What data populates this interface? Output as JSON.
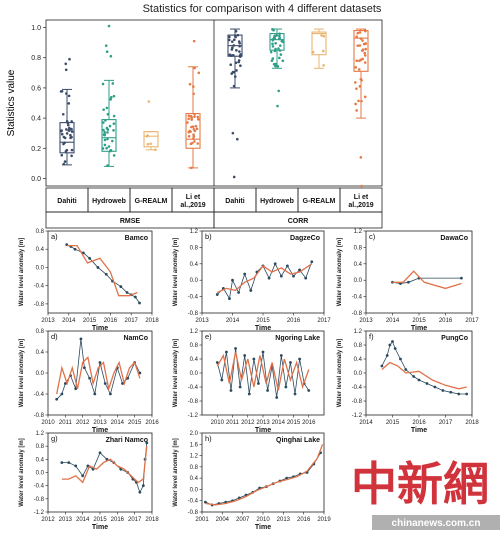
{
  "title": "Statistics for comparison with 4 different datasets",
  "colors": {
    "Dahiti": "#3b4c68",
    "Hydroweb": "#2f9e88",
    "G-REALM": "#e9b56f",
    "Li et al.,2019": "#e47a46",
    "measured": "#2b4a5e",
    "altimetry": "#e0724a"
  },
  "chart_data": [
    {
      "type": "box",
      "ylabel": "Statistics value",
      "ylim": [
        -0.05,
        1.05
      ],
      "yticks": [
        "0.0",
        "0.2",
        "0.4",
        "0.6",
        "0.8",
        "1.0"
      ],
      "groups": [
        "RMSE",
        "CORR"
      ],
      "categories": [
        "Dahiti",
        "Hydroweb",
        "G-REALM",
        "Li et al.,2019",
        "Dahiti",
        "Hydroweb",
        "G-REALM",
        "Li et al.,2019"
      ],
      "category_labels": [
        "Dahiti",
        "Hydroweb",
        "G-REALM",
        "Li et\nal.,2019",
        "Dahiti",
        "Hydroweb",
        "G-REALM",
        "Li et\nal.,2019"
      ],
      "boxes": [
        {
          "group": "RMSE",
          "dataset": "Dahiti",
          "min": 0.09,
          "q1": 0.17,
          "median": 0.24,
          "q3": 0.37,
          "max": 0.59,
          "outliers": [
            0.72,
            0.76,
            0.79
          ]
        },
        {
          "group": "RMSE",
          "dataset": "Hydroweb",
          "min": 0.08,
          "q1": 0.18,
          "median": 0.27,
          "q3": 0.39,
          "max": 0.65,
          "outliers": [
            0.81,
            0.84,
            0.88,
            1.01
          ]
        },
        {
          "group": "RMSE",
          "dataset": "G-REALM",
          "min": 0.19,
          "q1": 0.21,
          "median": 0.28,
          "q3": 0.31,
          "max": 0.31,
          "outliers": [
            0.51
          ]
        },
        {
          "group": "RMSE",
          "dataset": "Li et al.,2019",
          "min": 0.07,
          "q1": 0.2,
          "median": 0.26,
          "q3": 0.43,
          "max": 0.74,
          "outliers": [
            0.91
          ]
        },
        {
          "group": "CORR",
          "dataset": "Dahiti",
          "min": 0.6,
          "q1": 0.81,
          "median": 0.88,
          "q3": 0.95,
          "max": 0.99,
          "outliers": [
            0.3,
            0.26,
            0.01
          ]
        },
        {
          "group": "CORR",
          "dataset": "Hydroweb",
          "min": 0.73,
          "q1": 0.85,
          "median": 0.92,
          "q3": 0.96,
          "max": 0.99,
          "outliers": [
            0.48,
            0.58
          ]
        },
        {
          "group": "CORR",
          "dataset": "G-REALM",
          "min": 0.73,
          "q1": 0.82,
          "median": 0.96,
          "q3": 0.97,
          "max": 0.99,
          "outliers": []
        },
        {
          "group": "CORR",
          "dataset": "Li et al.,2019",
          "min": 0.4,
          "q1": 0.71,
          "median": 0.93,
          "q3": 0.98,
          "max": 0.99,
          "outliers": [
            0.14,
            -0.05
          ]
        }
      ]
    },
    {
      "type": "line",
      "panel": "a)",
      "name": "Bamco",
      "ylabel": "Water level anomaly [m]",
      "xlabel": "Time",
      "xlim": [
        2013,
        2018
      ],
      "ylim": [
        -1.0,
        0.8
      ],
      "xticks": [
        2013,
        2014,
        2015,
        2016,
        2017,
        2018
      ],
      "yticks": [
        "-0.8",
        "-0.4",
        "0.0",
        "0.4",
        "0.8"
      ],
      "series": [
        {
          "color_key": "measured",
          "x": [
            2013.9,
            2014.1,
            2014.3,
            2014.7,
            2015.0,
            2015.4,
            2015.8,
            2016.1,
            2016.5,
            2016.8,
            2017.0,
            2017.2,
            2017.4
          ],
          "y": [
            0.5,
            0.46,
            0.4,
            0.32,
            0.2,
            0.0,
            -0.15,
            -0.3,
            -0.42,
            -0.55,
            -0.6,
            -0.65,
            -0.78
          ]
        },
        {
          "color_key": "altimetry",
          "x": [
            2013.9,
            2014.4,
            2014.9,
            2015.5,
            2016.0,
            2016.4,
            2016.9,
            2017.3
          ],
          "y": [
            0.48,
            0.48,
            0.1,
            0.2,
            -0.1,
            -0.62,
            -0.62,
            -0.55
          ]
        }
      ]
    },
    {
      "type": "line",
      "panel": "b)",
      "name": "DagzeCo",
      "ylabel": "Water level anomaly [m]",
      "xlabel": "Time",
      "xlim": [
        2013,
        2017
      ],
      "ylim": [
        -0.8,
        1.2
      ],
      "xticks": [
        2013,
        2014,
        2015,
        2016,
        2017
      ],
      "yticks": [
        "-0.8",
        "-0.4",
        "0.0",
        "0.4",
        "0.8",
        "1.2"
      ],
      "series": [
        {
          "color_key": "measured",
          "x": [
            2013.5,
            2013.7,
            2013.9,
            2014.0,
            2014.2,
            2014.4,
            2014.6,
            2014.8,
            2015.0,
            2015.2,
            2015.4,
            2015.6,
            2015.8,
            2016.0,
            2016.2,
            2016.4,
            2016.6
          ],
          "y": [
            -0.35,
            -0.2,
            -0.45,
            0.0,
            -0.3,
            0.15,
            -0.25,
            0.2,
            0.35,
            0.05,
            0.4,
            0.1,
            0.35,
            0.1,
            0.25,
            0.05,
            0.45
          ]
        },
        {
          "color_key": "altimetry",
          "x": [
            2013.5,
            2013.8,
            2014.1,
            2014.4,
            2014.7,
            2015.0,
            2015.3,
            2015.6,
            2015.9,
            2016.2,
            2016.6
          ],
          "y": [
            -0.3,
            -0.2,
            -0.25,
            -0.05,
            0.05,
            0.35,
            0.2,
            0.3,
            0.15,
            0.2,
            0.4
          ]
        }
      ]
    },
    {
      "type": "line",
      "panel": "c)",
      "name": "DawaCo",
      "ylabel": "Water level anomaly [m]",
      "xlabel": "Time",
      "xlim": [
        2013,
        2017
      ],
      "ylim": [
        -0.8,
        1.2
      ],
      "xticks": [
        2013,
        2014,
        2015,
        2016,
        2017
      ],
      "yticks": [
        "-0.8",
        "-0.4",
        "0.0",
        "0.4",
        "0.8",
        "1.2"
      ],
      "series": [
        {
          "color_key": "measured",
          "x": [
            2014.0,
            2014.3,
            2014.6,
            2015.0,
            2016.6
          ],
          "y": [
            -0.05,
            -0.08,
            -0.05,
            0.05,
            0.05
          ]
        },
        {
          "color_key": "altimetry",
          "x": [
            2014.0,
            2014.4,
            2014.8,
            2015.2,
            2016.0,
            2016.6
          ],
          "y": [
            -0.05,
            -0.05,
            0.22,
            -0.05,
            -0.2,
            -0.08
          ]
        }
      ]
    },
    {
      "type": "line",
      "panel": "d)",
      "name": "NamCo",
      "ylabel": "Water level anomaly [m]",
      "xlabel": "Time",
      "xlim": [
        2010,
        2016
      ],
      "ylim": [
        -0.8,
        0.8
      ],
      "xticks": [
        2010,
        2011,
        2012,
        2013,
        2014,
        2015,
        2016
      ],
      "yticks": [
        "-0.8",
        "-0.4",
        "0.0",
        "0.4",
        "0.8"
      ],
      "series": [
        {
          "color_key": "measured",
          "x": [
            2010.5,
            2010.8,
            2011.0,
            2011.3,
            2011.6,
            2011.9,
            2012.1,
            2012.4,
            2012.7,
            2013.0,
            2013.3,
            2013.6,
            2014.0,
            2014.3,
            2014.6,
            2015.0,
            2015.3
          ],
          "y": [
            -0.5,
            -0.4,
            -0.2,
            -0.05,
            -0.3,
            0.65,
            0.1,
            -0.1,
            -0.4,
            0.2,
            -0.2,
            -0.4,
            0.1,
            -0.2,
            -0.1,
            0.2,
            0.0
          ]
        },
        {
          "color_key": "altimetry",
          "x": [
            2010.5,
            2010.8,
            2011.1,
            2011.4,
            2011.7,
            2012.0,
            2012.3,
            2012.6,
            2012.9,
            2013.2,
            2013.5,
            2013.8,
            2014.1,
            2014.4,
            2014.7,
            2015.0,
            2015.3
          ],
          "y": [
            -0.4,
            0.1,
            -0.2,
            0.1,
            -0.3,
            0.2,
            0.3,
            -0.2,
            0.1,
            0.2,
            -0.3,
            0.0,
            0.2,
            -0.2,
            0.1,
            0.2,
            -0.1
          ]
        }
      ]
    },
    {
      "type": "line",
      "panel": "e)",
      "name": "Ngoring Lake",
      "ylabel": "Water level anomaly [m]",
      "xlabel": "Time",
      "xlim": [
        2009,
        2017
      ],
      "ylim": [
        -1.2,
        1.2
      ],
      "xticks": [
        2010,
        2011,
        2012,
        2013,
        2014,
        2015,
        2016
      ],
      "yticks": [
        "-1.2",
        "-0.8",
        "-0.4",
        "0.0",
        "0.4",
        "0.8",
        "1.2"
      ],
      "series": [
        {
          "color_key": "measured",
          "x": [
            2010.0,
            2010.3,
            2010.6,
            2010.9,
            2011.2,
            2011.5,
            2011.8,
            2012.1,
            2012.4,
            2012.7,
            2013.0,
            2013.3,
            2013.6,
            2013.9,
            2014.2,
            2014.5,
            2014.8,
            2015.1,
            2015.4,
            2015.7,
            2016.0
          ],
          "y": [
            0.3,
            -0.2,
            0.6,
            -0.5,
            0.7,
            -0.4,
            0.5,
            -0.6,
            0.4,
            -0.3,
            0.6,
            -0.5,
            0.2,
            -0.7,
            0.5,
            -0.4,
            0.3,
            -0.6,
            0.4,
            -0.3,
            -0.5
          ]
        },
        {
          "color_key": "altimetry",
          "x": [
            2010.0,
            2010.4,
            2010.8,
            2011.2,
            2011.6,
            2012.0,
            2012.4,
            2012.8,
            2013.2,
            2013.6,
            2014.0,
            2014.4,
            2014.8,
            2015.2,
            2015.6,
            2016.0
          ],
          "y": [
            0.2,
            0.5,
            -0.3,
            0.6,
            -0.2,
            0.4,
            -0.4,
            0.5,
            -0.3,
            0.3,
            -0.5,
            0.4,
            -0.2,
            0.3,
            -0.4,
            0.1
          ]
        }
      ]
    },
    {
      "type": "line",
      "panel": "f)",
      "name": "PungCo",
      "ylabel": "Water level anomaly [m]",
      "xlabel": "Time",
      "xlim": [
        2014,
        2018
      ],
      "ylim": [
        -1.2,
        1.2
      ],
      "xticks": [
        2014,
        2015,
        2016,
        2017,
        2018
      ],
      "yticks": [
        "-1.2",
        "-0.8",
        "-0.4",
        "0.0",
        "0.4",
        "0.8",
        "1.2"
      ],
      "series": [
        {
          "color_key": "measured",
          "x": [
            2014.6,
            2014.8,
            2014.9,
            2015.0,
            2015.1,
            2015.3,
            2015.5,
            2015.8,
            2016.0,
            2016.3,
            2016.6,
            2016.9,
            2017.2,
            2017.5,
            2017.8
          ],
          "y": [
            0.2,
            0.5,
            0.8,
            0.9,
            0.7,
            0.4,
            0.1,
            -0.1,
            -0.2,
            -0.3,
            -0.4,
            -0.5,
            -0.55,
            -0.6,
            -0.6
          ]
        },
        {
          "color_key": "altimetry",
          "x": [
            2014.6,
            2014.9,
            2015.2,
            2015.5,
            2016.0,
            2016.5,
            2017.0,
            2017.5,
            2017.8
          ],
          "y": [
            0.1,
            0.3,
            0.2,
            0.0,
            0.05,
            -0.2,
            -0.35,
            -0.45,
            -0.4
          ]
        }
      ]
    },
    {
      "type": "line",
      "panel": "g)",
      "name": "Zhari Namco",
      "ylabel": "Water level anomaly [m]",
      "xlabel": "Time",
      "xlim": [
        2012,
        2018
      ],
      "ylim": [
        -1.2,
        1.2
      ],
      "xticks": [
        2012,
        2013,
        2014,
        2015,
        2016,
        2017,
        2018
      ],
      "yticks": [
        "-1.2",
        "-0.8",
        "-0.4",
        "0.0",
        "0.4",
        "0.8",
        "1.2"
      ],
      "series": [
        {
          "color_key": "measured",
          "x": [
            2012.8,
            2013.2,
            2013.6,
            2014.0,
            2014.3,
            2014.6,
            2015.0,
            2015.4,
            2015.8,
            2016.2,
            2016.6,
            2016.9,
            2017.1,
            2017.3,
            2017.5,
            2017.6,
            2017.7
          ],
          "y": [
            0.3,
            0.3,
            0.2,
            -0.1,
            0.2,
            0.1,
            0.6,
            0.4,
            0.3,
            0.1,
            0.0,
            -0.2,
            -0.3,
            -0.6,
            -0.4,
            0.4,
            0.9
          ]
        },
        {
          "color_key": "altimetry",
          "x": [
            2012.8,
            2013.2,
            2013.6,
            2014.0,
            2014.4,
            2014.8,
            2015.2,
            2015.6,
            2016.0,
            2016.4,
            2016.8,
            2017.2,
            2017.5,
            2017.7
          ],
          "y": [
            -0.2,
            -0.2,
            -0.1,
            -0.3,
            0.2,
            0.1,
            0.3,
            0.4,
            0.2,
            0.1,
            -0.1,
            -0.3,
            -0.2,
            0.8
          ]
        }
      ]
    },
    {
      "type": "line",
      "panel": "h)",
      "name": "Qinghai Lake",
      "ylabel": "Water level anomaly [m]",
      "xlabel": "Time",
      "xlim": [
        2001,
        2019
      ],
      "ylim": [
        -0.8,
        2.0
      ],
      "xticks": [
        2001,
        2004,
        2007,
        2010,
        2013,
        2016,
        2019
      ],
      "yticks": [
        "-0.8",
        "-0.4",
        "0.0",
        "0.4",
        "0.8",
        "1.2",
        "1.6",
        "2.0"
      ],
      "series": [
        {
          "color_key": "measured",
          "x": [
            2001.5,
            2002.5,
            2003.5,
            2004.5,
            2005.5,
            2006.5,
            2007.5,
            2008.5,
            2009.5,
            2010.5,
            2011.5,
            2012.5,
            2013.5,
            2014.5,
            2015.5,
            2016.5,
            2017.5,
            2018.5
          ],
          "y": [
            -0.45,
            -0.55,
            -0.5,
            -0.45,
            -0.4,
            -0.3,
            -0.2,
            -0.1,
            0.05,
            0.1,
            0.2,
            0.3,
            0.4,
            0.45,
            0.55,
            0.6,
            0.9,
            1.3
          ]
        },
        {
          "color_key": "altimetry",
          "x": [
            2001.5,
            2003.0,
            2004.5,
            2006.0,
            2007.5,
            2009.0,
            2010.5,
            2012.0,
            2013.5,
            2015.0,
            2016.5,
            2018.0,
            2018.8
          ],
          "y": [
            -0.5,
            -0.55,
            -0.5,
            -0.4,
            -0.25,
            -0.05,
            0.1,
            0.25,
            0.35,
            0.45,
            0.65,
            1.1,
            1.6
          ]
        }
      ]
    }
  ],
  "watermark": {
    "chars": "中新網",
    "url": "chinanews.com.cn"
  }
}
